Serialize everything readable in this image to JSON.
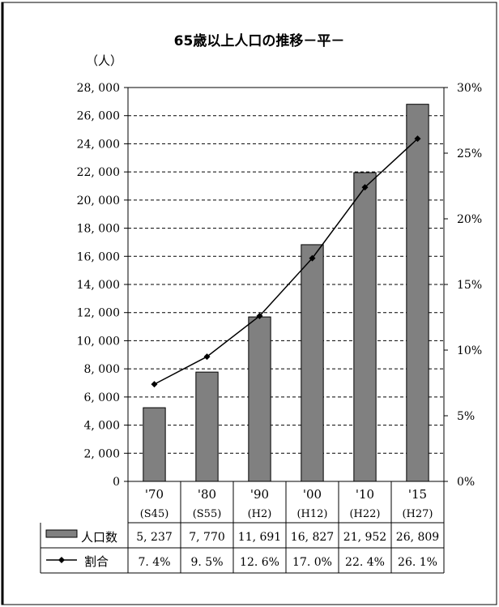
{
  "chart_data": {
    "type": "bar",
    "title": "65歳以上人口の推移－平－",
    "unit_label": "（人）",
    "categories": [
      "'70",
      "'80",
      "'90",
      "'00",
      "'10",
      "'15"
    ],
    "category_sublabels": [
      "(S45)",
      "(S55)",
      "(H2)",
      "(H12)",
      "(H22)",
      "(H27)"
    ],
    "series": [
      {
        "name": "人口数",
        "type": "bar",
        "axis": "left",
        "color": "#808080",
        "values": [
          5237,
          7770,
          11691,
          16827,
          21952,
          26809
        ],
        "display": [
          "5, 237",
          "7, 770",
          "11, 691",
          "16, 827",
          "21, 952",
          "26, 809"
        ]
      },
      {
        "name": "割合",
        "type": "line",
        "axis": "right",
        "color": "#000000",
        "values": [
          7.4,
          9.5,
          12.6,
          17.0,
          22.4,
          26.1
        ],
        "display": [
          "7. 4%",
          "9. 5%",
          "12. 6%",
          "17. 0%",
          "22. 4%",
          "26. 1%"
        ]
      }
    ],
    "y_left": {
      "min": 0,
      "max": 28000,
      "step": 2000,
      "tick_labels": [
        "0",
        "2, 000",
        "4, 000",
        "6, 000",
        "8, 000",
        "10, 000",
        "12, 000",
        "14, 000",
        "16, 000",
        "18, 000",
        "20, 000",
        "22, 000",
        "24, 000",
        "26, 000",
        "28, 000"
      ]
    },
    "y_right": {
      "min": 0,
      "max": 30,
      "step": 5,
      "tick_labels": [
        "0%",
        "5%",
        "10%",
        "15%",
        "20%",
        "25%",
        "30%"
      ]
    },
    "grid": "dashed horizontal",
    "legend": "data table below chart"
  }
}
